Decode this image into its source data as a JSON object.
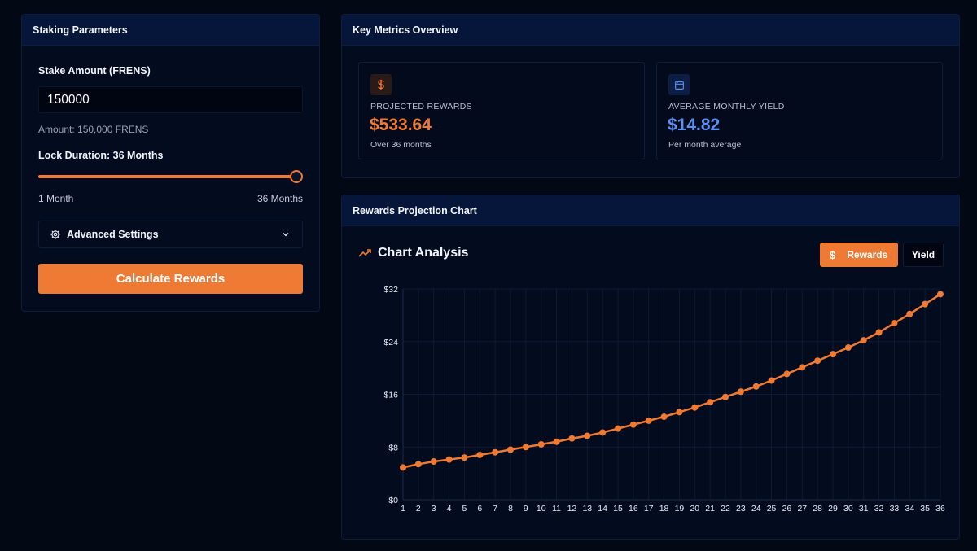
{
  "params": {
    "title": "Staking Parameters",
    "stake_label": "Stake Amount (FRENS)",
    "stake_value": "150000",
    "amount_text": "Amount: 150,000 FRENS",
    "lock_label": "Lock Duration: 36 Months",
    "slider_min": "1 Month",
    "slider_max": "36 Months",
    "slider_level_fraction": 1.0,
    "advanced_label": "Advanced Settings",
    "calculate_label": "Calculate Rewards"
  },
  "metrics": {
    "title": "Key Metrics Overview",
    "cards": [
      {
        "icon": "dollar-icon",
        "title": "PROJECTED REWARDS",
        "value": "$533.64",
        "sub": "Over 36 months",
        "color": "#ef7a33"
      },
      {
        "icon": "calendar-icon",
        "title": "AVERAGE MONTHLY YIELD",
        "value": "$14.82",
        "sub": "Per month average",
        "color": "#5b8ff0"
      }
    ]
  },
  "chart_panel": {
    "title": "Rewards Projection Chart",
    "heading": "Chart Analysis",
    "rewards_btn": "Rewards",
    "rewards_icon_glyph": "$",
    "yield_btn": "Yield"
  },
  "colors": {
    "accent": "#ef7a33",
    "blue": "#5b8ff0"
  },
  "chart_data": {
    "type": "line",
    "x": [
      1,
      2,
      3,
      4,
      5,
      6,
      7,
      8,
      9,
      10,
      11,
      12,
      13,
      14,
      15,
      16,
      17,
      18,
      19,
      20,
      21,
      22,
      23,
      24,
      25,
      26,
      27,
      28,
      29,
      30,
      31,
      32,
      33,
      34,
      35,
      36
    ],
    "y": [
      4.9,
      5.4,
      5.8,
      6.1,
      6.4,
      6.8,
      7.2,
      7.6,
      8.0,
      8.4,
      8.8,
      9.3,
      9.7,
      10.2,
      10.8,
      11.4,
      12.0,
      12.6,
      13.3,
      14.0,
      14.8,
      15.6,
      16.4,
      17.2,
      18.1,
      19.1,
      20.1,
      21.1,
      22.1,
      23.1,
      24.2,
      25.4,
      26.8,
      28.2,
      29.7,
      31.2
    ],
    "y_ticks": [
      "$0",
      "$8",
      "$16",
      "$24",
      "$32"
    ],
    "y_tick_values": [
      0,
      8,
      16,
      24,
      32
    ],
    "ylim": [
      0,
      32
    ],
    "xlim": [
      1,
      36
    ],
    "grid": true,
    "color": "#ef7a33"
  }
}
